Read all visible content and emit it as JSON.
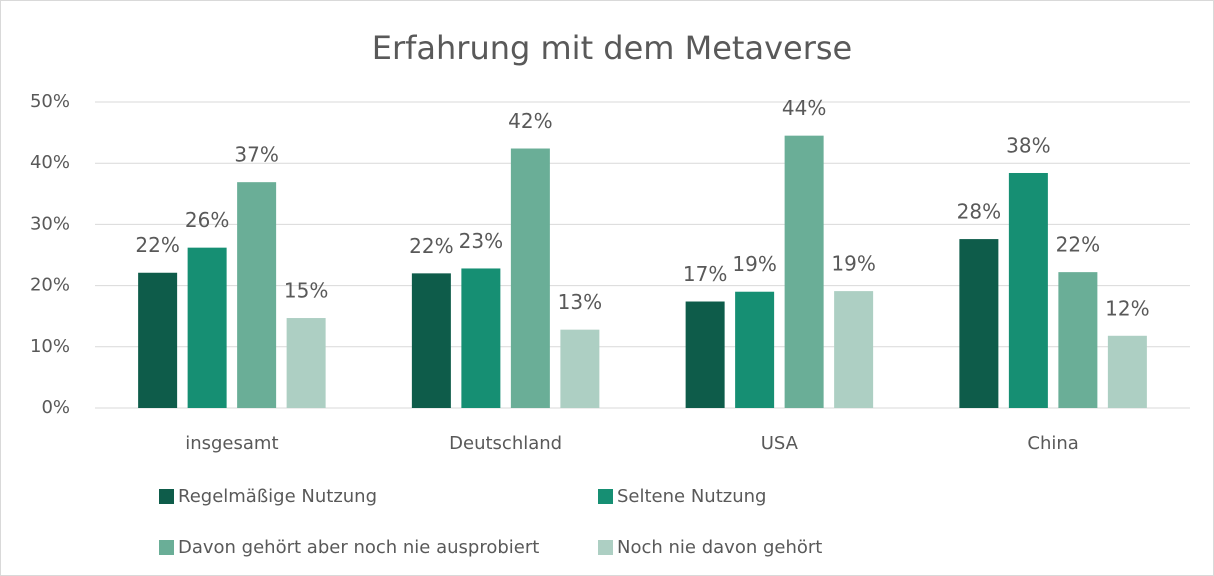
{
  "chart_data": {
    "type": "bar",
    "title": "Erfahrung mit dem Metaverse",
    "categories": [
      "insgesamt",
      "Deutschland",
      "USA",
      "China"
    ],
    "series": [
      {
        "name": "Regelmäßige Nutzung",
        "color": "#0e5c4a",
        "values": [
          22.1,
          22.0,
          17.4,
          27.6
        ],
        "value_labels": [
          "22%",
          "22%",
          "17%",
          "28%"
        ]
      },
      {
        "name": "Seltene Nutzung",
        "color": "#168f73",
        "values": [
          26.2,
          22.8,
          19.0,
          38.4
        ],
        "value_labels": [
          "26%",
          "23%",
          "19%",
          "38%"
        ]
      },
      {
        "name": "Davon gehört aber noch nie ausprobiert",
        "color": "#6aae97",
        "values": [
          36.9,
          42.4,
          44.5,
          22.2
        ],
        "value_labels": [
          "37%",
          "42%",
          "44%",
          "22%"
        ]
      },
      {
        "name": "Noch nie davon gehört",
        "color": "#adcfc3",
        "values": [
          14.7,
          12.8,
          19.1,
          11.8
        ],
        "value_labels": [
          "15%",
          "13%",
          "19%",
          "12%"
        ]
      }
    ],
    "ylim": [
      0,
      50
    ],
    "yticks": [
      {
        "value": 0,
        "label": "0%"
      },
      {
        "value": 10,
        "label": "10%"
      },
      {
        "value": 20,
        "label": "20%"
      },
      {
        "value": 30,
        "label": "30%"
      },
      {
        "value": 40,
        "label": "40%"
      },
      {
        "value": 50,
        "label": "50%"
      }
    ],
    "grid": true,
    "legend": "bottom"
  }
}
